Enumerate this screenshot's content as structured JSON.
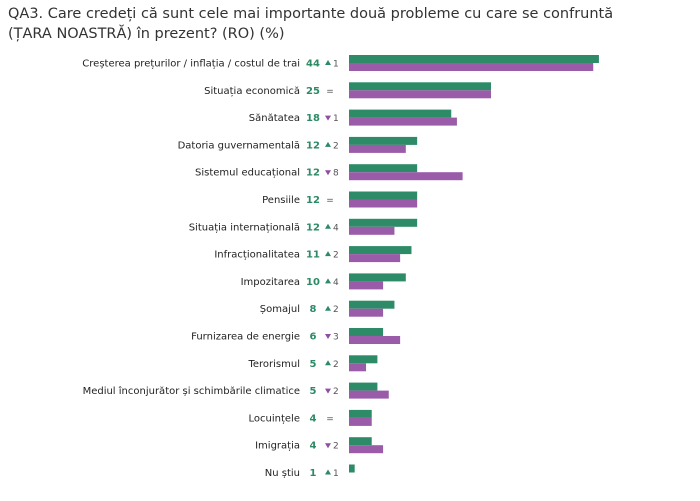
{
  "title_line1": "QA3. Care credeți că sunt cele mai importante două probleme cu care se confruntă",
  "title_line2": "(ȚARA NOASTRĂ) în prezent? (RO) (%)",
  "colors": {
    "current": "#2e8b67",
    "previous": "#9a5ba8",
    "up": "#2d8a66",
    "down": "#8e4fa0"
  },
  "chart_data": {
    "type": "bar",
    "orientation": "horizontal",
    "title": "QA3. Care credeți că sunt cele mai importante două probleme cu care se confruntă (ȚARA NOASTRĂ) în prezent? (RO) (%)",
    "categories": [
      "Creșterea prețurilor / inflația / costul de trai",
      "Situația economică",
      "Sănătatea",
      "Datoria guvernamentală",
      "Sistemul educațional",
      "Pensiile",
      "Situația internațională",
      "Infracționalitatea",
      "Impozitarea",
      "Șomajul",
      "Furnizarea de energie",
      "Terorismul",
      "Mediul înconjurător și schimbările climatice",
      "Locuințele",
      "Imigrația",
      "Nu știu"
    ],
    "category_labels": [
      "Creșterea prețurilor / inflația / costul de trai",
      "Situația economică",
      "Sănătatea",
      "Datoria guvernamentală",
      "Sistemul educațional",
      "Pensiile",
      "Situația internațională",
      "Infracționalitatea",
      "Impozitarea",
      "Șomajul",
      "Furnizarea de energie",
      "Terorismul",
      "Mediul înconjurător și schimbările climatice",
      "Locuințele",
      "Imigrația",
      "Nu știu"
    ],
    "values_label": [
      "44",
      "25",
      "18",
      "12",
      "12",
      "12",
      "12",
      "11",
      "10",
      "8",
      "6",
      "5",
      "5",
      "4",
      "4",
      "1"
    ],
    "series": [
      {
        "values": [
          44,
          25,
          18,
          12,
          12,
          12,
          12,
          11,
          10,
          8,
          6,
          5,
          5,
          4,
          4,
          1
        ]
      },
      {
        "values": [
          43,
          25,
          19,
          10,
          20,
          12,
          8,
          9,
          6,
          6,
          9,
          3,
          7,
          4,
          6,
          0
        ]
      }
    ],
    "changes": [
      {
        "dir": "up",
        "text": "1"
      },
      {
        "dir": "eq",
        "text": "="
      },
      {
        "dir": "down",
        "text": "1"
      },
      {
        "dir": "up",
        "text": "2"
      },
      {
        "dir": "down",
        "text": "8"
      },
      {
        "dir": "eq",
        "text": "="
      },
      {
        "dir": "up",
        "text": "4"
      },
      {
        "dir": "up",
        "text": "2"
      },
      {
        "dir": "up",
        "text": "4"
      },
      {
        "dir": "up",
        "text": "2"
      },
      {
        "dir": "down",
        "text": "3"
      },
      {
        "dir": "up",
        "text": "2"
      },
      {
        "dir": "down",
        "text": "2"
      },
      {
        "dir": "eq",
        "text": "="
      },
      {
        "dir": "down",
        "text": "2"
      },
      {
        "dir": "up",
        "text": "1"
      }
    ],
    "xlim": [
      0,
      44
    ]
  }
}
